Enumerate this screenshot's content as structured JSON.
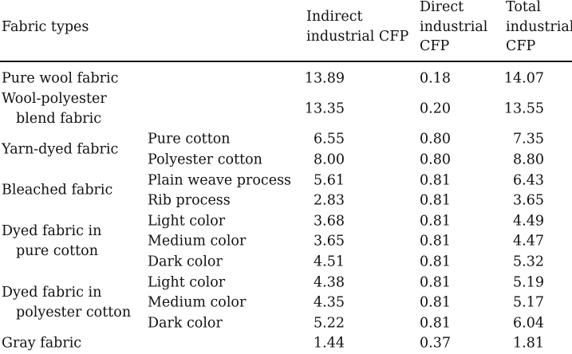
{
  "header": {
    "columns": [
      "Fabric types",
      "Indirect industrial CFP",
      "Direct industrial CFP",
      "Total industrial CFP"
    ]
  },
  "table": {
    "groups": [
      {
        "fabric": "Pure wool fabric",
        "items": [
          {
            "indirect": "13.89",
            "direct": "0.18",
            "total": "14.07"
          }
        ]
      },
      {
        "fabric": "Wool-polyester blend fabric",
        "items": [
          {
            "indirect": "13.35",
            "direct": "0.20",
            "total": "13.55"
          }
        ]
      },
      {
        "fabric": "Yarn-dyed fabric",
        "items": [
          {
            "subtype": "Pure cotton",
            "indirect": "6.55",
            "direct": "0.80",
            "total": "7.35"
          },
          {
            "subtype": "Polyester cotton",
            "indirect": "8.00",
            "direct": "0.80",
            "total": "8.80"
          }
        ]
      },
      {
        "fabric": "Bleached fabric",
        "items": [
          {
            "subtype": "Plain weave process",
            "indirect": "5.61",
            "direct": "0.81",
            "total": "6.43"
          },
          {
            "subtype": "Rib process",
            "indirect": "2.83",
            "direct": "0.81",
            "total": "3.65"
          }
        ]
      },
      {
        "fabric": "Dyed fabric in pure cotton",
        "items": [
          {
            "subtype": "Light color",
            "indirect": "3.68",
            "direct": "0.81",
            "total": "4.49"
          },
          {
            "subtype": "Medium color",
            "indirect": "3.65",
            "direct": "0.81",
            "total": "4.47"
          },
          {
            "subtype": "Dark color",
            "indirect": "4.51",
            "direct": "0.81",
            "total": "5.32"
          }
        ]
      },
      {
        "fabric": "Dyed fabric in polyester cotton",
        "items": [
          {
            "subtype": "Light color",
            "indirect": "4.38",
            "direct": "0.81",
            "total": "5.19"
          },
          {
            "subtype": "Medium color",
            "indirect": "4.35",
            "direct": "0.81",
            "total": "5.17"
          },
          {
            "subtype": "Dark color",
            "indirect": "5.22",
            "direct": "0.81",
            "total": "6.04"
          }
        ]
      },
      {
        "fabric": "Gray fabric",
        "items": [
          {
            "indirect": "1.44",
            "direct": "0.37",
            "total": "1.81"
          }
        ]
      }
    ]
  }
}
